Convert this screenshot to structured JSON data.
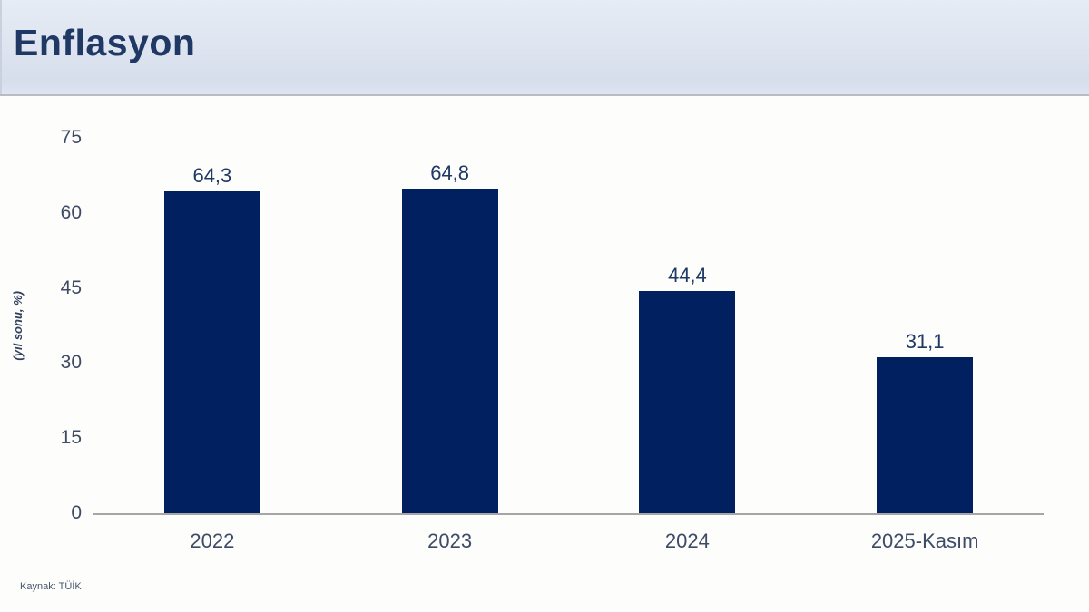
{
  "header": {
    "title": "Enflasyon"
  },
  "chart_data": {
    "type": "bar",
    "title": "Enflasyon",
    "categories": [
      "2022",
      "2023",
      "2024",
      "2025-Kasım"
    ],
    "values": [
      64.3,
      64.8,
      44.4,
      31.1
    ],
    "value_labels": [
      "64,3",
      "64,8",
      "44,4",
      "31,1"
    ],
    "xlabel": "",
    "ylabel": "(yıl sonu, %)",
    "ylim": [
      0,
      75
    ],
    "yticks": [
      0,
      15,
      30,
      45,
      60,
      75
    ],
    "grid": false,
    "legend": false,
    "bar_color": "#002060"
  },
  "footer": {
    "source": "Kaynak: TÜİK"
  },
  "colors": {
    "banner_bg": "#dde4f0",
    "title_text": "#1f3864",
    "bar": "#002060",
    "axis_text": "#3d4b66",
    "value_text": "#1f3864",
    "baseline": "#a6a6a6",
    "source_text": "#47566e"
  }
}
